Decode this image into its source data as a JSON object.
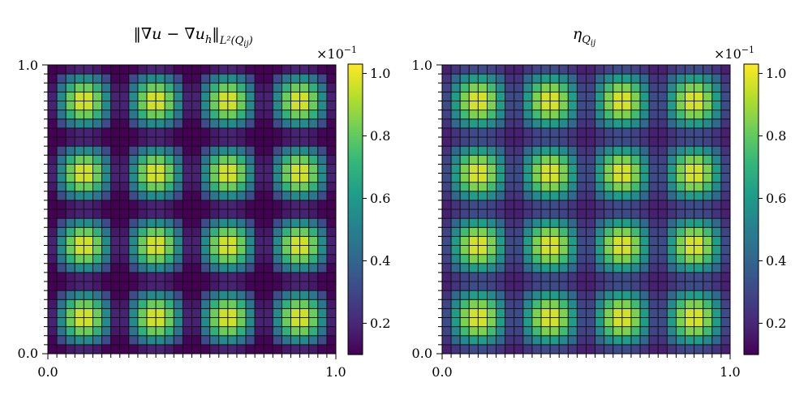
{
  "chart_data": [
    {
      "type": "heatmap",
      "title": "‖∇u − ∇u_h‖_{L²(Q_ij)}",
      "title_main": "‖∇u − ∇u",
      "title_sub1": "h",
      "title_mid": "‖",
      "title_sub2": "L²(Q",
      "title_subsub": "ij",
      "title_close": ")",
      "x_ticklabels": [
        "0.0",
        "1.0"
      ],
      "y_ticklabels": [
        "0.0",
        "1.0"
      ],
      "xlim": [
        0,
        1
      ],
      "ylim": [
        0,
        1
      ],
      "grid": {
        "nx": 32,
        "ny": 32,
        "cell_edges": true
      },
      "field": {
        "formula": "|sin(4πx)·sin(4πy)|",
        "vmin": 0.0,
        "vmax": 1.0
      },
      "colorbar": {
        "colormap": "viridis",
        "multiplier": "×10",
        "multiplier_exp": "−1",
        "range": [
          0.1,
          1.03
        ],
        "ticks": [
          0.2,
          0.4,
          0.6,
          0.8,
          1.0
        ],
        "ticklabels": [
          "0.2",
          "0.4",
          "0.6",
          "0.8",
          "1.0"
        ]
      }
    },
    {
      "type": "heatmap",
      "title": "η_{Q_ij}",
      "title_main": "η",
      "title_sub": "Q",
      "title_subsub": "ij",
      "x_ticklabels": [
        "0.0",
        "1.0"
      ],
      "y_ticklabels": [
        "0.0",
        "1.0"
      ],
      "xlim": [
        0,
        1
      ],
      "ylim": [
        0,
        1
      ],
      "grid": {
        "nx": 32,
        "ny": 32,
        "cell_edges": true
      },
      "field": {
        "formula": "|sin(4πx)·sin(4πy)|",
        "vmin": 0.15,
        "vmax": 1.0
      },
      "colorbar": {
        "colormap": "viridis",
        "multiplier": "×10",
        "multiplier_exp": "−1",
        "range": [
          0.1,
          1.03
        ],
        "ticks": [
          0.2,
          0.4,
          0.6,
          0.8,
          1.0
        ],
        "ticklabels": [
          "0.2",
          "0.4",
          "0.6",
          "0.8",
          "1.0"
        ]
      }
    }
  ],
  "colors": {
    "viridis": [
      "#440154",
      "#482878",
      "#3e4989",
      "#31688e",
      "#26828e",
      "#1f9e89",
      "#35b779",
      "#6ece58",
      "#b5de2b",
      "#fde725"
    ],
    "cell_edge": "#111111",
    "axis": "#000000"
  }
}
